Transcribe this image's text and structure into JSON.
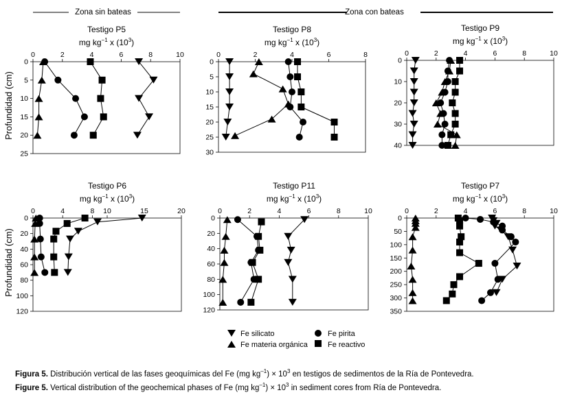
{
  "zones": {
    "left": "Zona sin bateas",
    "right": "Zona con bateas"
  },
  "y_axis_label": "Profundidad (cm)",
  "x_axis_label_parts": [
    "mg kg",
    "−1",
    " x (10",
    "3",
    ")"
  ],
  "legend": {
    "silicato": "Fe silicato",
    "organica": "Fe materia orgánica",
    "pirita": "Fe pirita",
    "reactivo": "Fe reactivo"
  },
  "caption": {
    "es_bold": "Figura 5.",
    "es_text": " Distribución vertical de las fases geoquímicas del Fe (mg kg",
    "es_sup1": "–1",
    "es_mid": ") × 10",
    "es_sup2": "3",
    "es_end": " en testigos de sedimentos de la Ría de Pontevedra.",
    "en_bold": "Figure 5.",
    "en_text": " Vertical distribution of the geochemical phases of Fe (mg kg",
    "en_sup1": "–1",
    "en_mid": ") × 10",
    "en_sup2": "3",
    "en_end": " in sediment cores from Ría de Pontevedra."
  },
  "colors": {
    "ink": "#000000",
    "background": "#ffffff"
  },
  "chart_data": [
    {
      "id": "P5",
      "type": "line",
      "title": "Testigo P5",
      "xlim": [
        0,
        10
      ],
      "xticks": [
        0,
        2,
        4,
        6,
        8,
        10
      ],
      "ylim": [
        0,
        25
      ],
      "yticks": [
        0,
        5,
        10,
        15,
        20,
        25
      ],
      "series": [
        {
          "name": "Fe silicato",
          "marker": "tri-down",
          "points": [
            [
              7.2,
              0
            ],
            [
              8.2,
              5
            ],
            [
              7.2,
              10
            ],
            [
              7.9,
              15
            ],
            [
              7.1,
              20
            ]
          ]
        },
        {
          "name": "Fe materia orgánica",
          "marker": "tri-up",
          "points": [
            [
              0.7,
              0
            ],
            [
              0.6,
              5
            ],
            [
              0.4,
              10
            ],
            [
              0.4,
              15
            ],
            [
              0.3,
              20
            ]
          ]
        },
        {
          "name": "Fe pirita",
          "marker": "circle",
          "points": [
            [
              0.8,
              0
            ],
            [
              1.7,
              5
            ],
            [
              2.9,
              10
            ],
            [
              3.5,
              15
            ],
            [
              2.8,
              20
            ]
          ]
        },
        {
          "name": "Fe reactivo",
          "marker": "square",
          "points": [
            [
              3.9,
              0
            ],
            [
              4.7,
              5
            ],
            [
              4.6,
              10
            ],
            [
              4.8,
              15
            ],
            [
              4.1,
              20
            ]
          ]
        }
      ]
    },
    {
      "id": "P8",
      "type": "line",
      "title": "Testigo P8",
      "xlim": [
        0,
        8
      ],
      "xticks": [
        0,
        2,
        4,
        6,
        8
      ],
      "ylim": [
        0,
        30
      ],
      "yticks": [
        0,
        5,
        10,
        15,
        20,
        25,
        30
      ],
      "series": [
        {
          "name": "Fe silicato",
          "marker": "tri-down",
          "points": [
            [
              0.6,
              0
            ],
            [
              0.6,
              5
            ],
            [
              0.6,
              10
            ],
            [
              0.6,
              15
            ],
            [
              0.5,
              20
            ],
            [
              0.4,
              25
            ]
          ]
        },
        {
          "name": "Fe materia orgánica",
          "marker": "tri-up",
          "points": [
            [
              2.2,
              0
            ],
            [
              1.9,
              4
            ],
            [
              3.5,
              9
            ],
            [
              3.8,
              14
            ],
            [
              2.9,
              19
            ],
            [
              0.9,
              24.5
            ]
          ]
        },
        {
          "name": "Fe pirita",
          "marker": "circle",
          "points": [
            [
              3.8,
              0
            ],
            [
              3.9,
              5
            ],
            [
              4.0,
              10
            ],
            [
              3.9,
              15
            ],
            [
              4.6,
              20
            ],
            [
              4.4,
              25
            ]
          ]
        },
        {
          "name": "Fe reactivo",
          "marker": "square",
          "points": [
            [
              4.3,
              0
            ],
            [
              4.3,
              5
            ],
            [
              4.5,
              10
            ],
            [
              4.5,
              15
            ],
            [
              6.3,
              20
            ],
            [
              6.3,
              25
            ]
          ]
        }
      ]
    },
    {
      "id": "P9",
      "type": "line",
      "title": "Testigo P9",
      "xlim": [
        0,
        10
      ],
      "xticks": [
        0,
        2,
        4,
        6,
        8,
        10
      ],
      "ylim": [
        0,
        40
      ],
      "yticks": [
        0,
        10,
        20,
        30,
        40
      ],
      "series": [
        {
          "name": "Fe silicato",
          "marker": "tri-down",
          "points": [
            [
              0.6,
              0
            ],
            [
              0.5,
              5
            ],
            [
              0.5,
              10
            ],
            [
              0.5,
              15
            ],
            [
              0.5,
              20
            ],
            [
              0.4,
              25
            ],
            [
              0.5,
              30
            ],
            [
              0.4,
              35
            ],
            [
              0.4,
              40
            ]
          ]
        },
        {
          "name": "Fe materia orgánica",
          "marker": "tri-up",
          "points": [
            [
              3.0,
              0
            ],
            [
              2.9,
              5
            ],
            [
              2.6,
              10
            ],
            [
              2.4,
              15
            ],
            [
              2.0,
              20
            ],
            [
              2.3,
              25
            ],
            [
              2.1,
              30
            ],
            [
              3.4,
              35
            ],
            [
              3.3,
              40
            ]
          ]
        },
        {
          "name": "Fe pirita",
          "marker": "circle",
          "points": [
            [
              2.9,
              0
            ],
            [
              2.8,
              5
            ],
            [
              2.8,
              10
            ],
            [
              2.6,
              15
            ],
            [
              2.3,
              20
            ],
            [
              2.5,
              25
            ],
            [
              2.6,
              30
            ],
            [
              2.4,
              35
            ],
            [
              2.4,
              40
            ]
          ]
        },
        {
          "name": "Fe reactivo",
          "marker": "square",
          "points": [
            [
              3.6,
              0
            ],
            [
              3.6,
              5
            ],
            [
              3.3,
              10
            ],
            [
              3.3,
              15
            ],
            [
              3.1,
              20
            ],
            [
              3.3,
              25
            ],
            [
              3.3,
              30
            ],
            [
              3.0,
              35
            ],
            [
              2.8,
              40
            ]
          ]
        }
      ]
    },
    {
      "id": "P6",
      "type": "line",
      "title": "Testigo P6",
      "xlim": [
        0,
        20
      ],
      "xticks": [
        0,
        4,
        8,
        10,
        15,
        20
      ],
      "ylim": [
        0,
        120
      ],
      "yticks": [
        0,
        20,
        40,
        60,
        80,
        100,
        120
      ],
      "series": [
        {
          "name": "Fe silicato",
          "marker": "tri-down",
          "points": [
            [
              14.7,
              0
            ],
            [
              8.7,
              5
            ],
            [
              6.1,
              17
            ],
            [
              5.0,
              27
            ],
            [
              4.8,
              50
            ],
            [
              4.7,
              70
            ]
          ]
        },
        {
          "name": "Fe materia orgánica",
          "marker": "tri-up",
          "points": [
            [
              0.4,
              0
            ],
            [
              0.3,
              7
            ],
            [
              0.2,
              27
            ],
            [
              0.2,
              50
            ],
            [
              0.2,
              70
            ]
          ]
        },
        {
          "name": "Fe pirita",
          "marker": "circle",
          "points": [
            [
              0.9,
              0
            ],
            [
              0.9,
              7
            ],
            [
              1.0,
              27
            ],
            [
              1.1,
              50
            ],
            [
              1.6,
              70
            ]
          ]
        },
        {
          "name": "Fe reactivo",
          "marker": "square",
          "points": [
            [
              7.0,
              0
            ],
            [
              4.6,
              7
            ],
            [
              3.1,
              17
            ],
            [
              2.8,
              27
            ],
            [
              2.8,
              50
            ],
            [
              2.9,
              70
            ]
          ]
        }
      ]
    },
    {
      "id": "P11",
      "type": "line",
      "title": "Testigo P11",
      "xlim": [
        0,
        10
      ],
      "xticks": [
        0,
        2,
        4,
        6,
        8,
        10
      ],
      "ylim": [
        0,
        120
      ],
      "yticks": [
        0,
        20,
        40,
        60,
        80,
        100,
        120
      ],
      "series": [
        {
          "name": "Fe silicato",
          "marker": "tri-down",
          "points": [
            [
              5.7,
              2
            ],
            [
              4.6,
              24
            ],
            [
              4.8,
              42
            ],
            [
              4.6,
              58
            ],
            [
              4.9,
              80
            ],
            [
              4.9,
              110
            ]
          ]
        },
        {
          "name": "Fe materia orgánica",
          "marker": "tri-up",
          "points": [
            [
              0.5,
              2
            ],
            [
              0.4,
              24
            ],
            [
              0.3,
              42
            ],
            [
              0.3,
              58
            ],
            [
              0.2,
              80
            ],
            [
              0.2,
              110
            ]
          ]
        },
        {
          "name": "Fe pirita",
          "marker": "circle",
          "points": [
            [
              1.2,
              2
            ],
            [
              2.5,
              24
            ],
            [
              2.6,
              42
            ],
            [
              2.1,
              58
            ],
            [
              2.3,
              80
            ],
            [
              1.4,
              110
            ]
          ]
        },
        {
          "name": "Fe reactivo",
          "marker": "square",
          "points": [
            [
              2.8,
              5
            ],
            [
              2.6,
              24
            ],
            [
              2.7,
              42
            ],
            [
              2.2,
              58
            ],
            [
              2.6,
              80
            ],
            [
              2.1,
              110
            ]
          ]
        }
      ]
    },
    {
      "id": "P7",
      "type": "line",
      "title": "Testigo P7",
      "xlim": [
        0,
        10
      ],
      "xticks": [
        0,
        2,
        4,
        6,
        8,
        10
      ],
      "ylim": [
        0,
        350
      ],
      "yticks": [
        0,
        50,
        100,
        150,
        200,
        250,
        300,
        350
      ],
      "series": [
        {
          "name": "Fe silicato",
          "marker": "tri-down",
          "points": [
            [
              5.8,
              0
            ],
            [
              5.9,
              10
            ],
            [
              6.1,
              20
            ],
            [
              6.0,
              30
            ],
            [
              6.4,
              45
            ],
            [
              6.9,
              70
            ],
            [
              7.2,
              120
            ],
            [
              7.5,
              180
            ],
            [
              6.5,
              230
            ],
            [
              6.1,
              280
            ]
          ]
        },
        {
          "name": "Fe materia orgánica",
          "marker": "tri-up",
          "points": [
            [
              0.6,
              0
            ],
            [
              0.6,
              10
            ],
            [
              0.6,
              20
            ],
            [
              0.6,
              35
            ],
            [
              0.4,
              70
            ],
            [
              0.4,
              120
            ],
            [
              0.3,
              180
            ],
            [
              0.4,
              230
            ],
            [
              0.4,
              280
            ],
            [
              0.4,
              310
            ]
          ]
        },
        {
          "name": "Fe pirita",
          "marker": "circle",
          "points": [
            [
              4.0,
              0
            ],
            [
              5.0,
              5
            ],
            [
              5.9,
              15
            ],
            [
              6.5,
              30
            ],
            [
              6.5,
              45
            ],
            [
              7.1,
              70
            ],
            [
              7.4,
              90
            ],
            [
              6.0,
              170
            ],
            [
              6.2,
              230
            ],
            [
              5.7,
              280
            ],
            [
              5.1,
              310
            ]
          ]
        },
        {
          "name": "Fe reactivo",
          "marker": "square",
          "points": [
            [
              3.5,
              0
            ],
            [
              3.6,
              10
            ],
            [
              3.6,
              30
            ],
            [
              3.7,
              70
            ],
            [
              3.6,
              90
            ],
            [
              3.6,
              130
            ],
            [
              4.9,
              170
            ],
            [
              3.6,
              220
            ],
            [
              3.2,
              250
            ],
            [
              3.1,
              285
            ],
            [
              2.7,
              310
            ]
          ]
        }
      ]
    }
  ]
}
